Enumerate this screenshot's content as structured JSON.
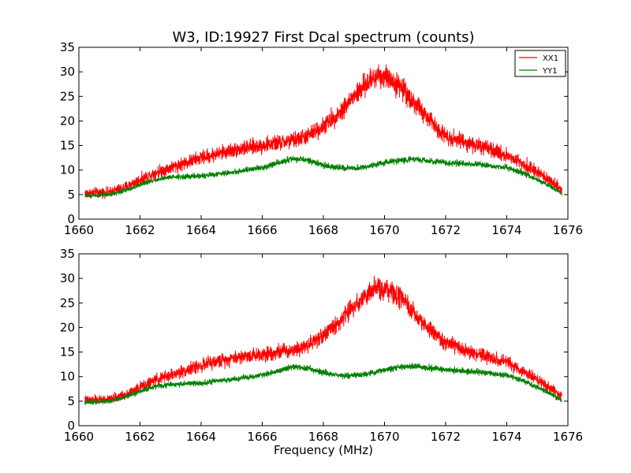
{
  "figure": {
    "title": "W3, ID:19927 First Dcal spectrum (counts)",
    "xlabel": "Frequency (MHz)"
  },
  "colors": {
    "XX1": "#ff0000",
    "YY1": "#008000",
    "axes": "#000000",
    "background": "#ffffff"
  },
  "chart_data": [
    {
      "type": "line",
      "title": "W3, ID:19927 First Dcal spectrum (counts)",
      "xlabel": "",
      "ylabel": "",
      "xlim": [
        1660,
        1676
      ],
      "ylim": [
        0,
        35
      ],
      "xticks": [
        1660,
        1662,
        1664,
        1666,
        1668,
        1670,
        1672,
        1674,
        1676
      ],
      "yticks": [
        0,
        5,
        10,
        15,
        20,
        25,
        30,
        35
      ],
      "grid": false,
      "legend": {
        "position": "top-right",
        "entries": [
          "XX1",
          "YY1"
        ]
      },
      "series": [
        {
          "name": "XX1",
          "color": "#ff0000",
          "noise": 1.8,
          "x": [
            1660.2,
            1661.0,
            1661.5,
            1662.0,
            1662.5,
            1663.0,
            1664.0,
            1665.0,
            1666.0,
            1667.0,
            1667.5,
            1668.0,
            1668.5,
            1669.0,
            1669.5,
            1669.8,
            1670.2,
            1670.6,
            1671.0,
            1671.5,
            1672.0,
            1673.0,
            1674.0,
            1674.5,
            1675.0,
            1675.5,
            1675.8
          ],
          "y": [
            5.3,
            5.5,
            6.5,
            8.0,
            9.5,
            10.5,
            12.5,
            14.0,
            15.0,
            16.0,
            17.0,
            19.0,
            21.5,
            25.0,
            28.0,
            29.5,
            28.5,
            26.5,
            23.5,
            20.0,
            17.0,
            15.0,
            13.0,
            11.5,
            9.5,
            7.5,
            6.0
          ]
        },
        {
          "name": "YY1",
          "color": "#008000",
          "noise": 0.8,
          "x": [
            1660.2,
            1661.0,
            1661.5,
            1662.0,
            1662.5,
            1663.0,
            1664.0,
            1665.0,
            1666.0,
            1666.5,
            1667.0,
            1667.5,
            1668.0,
            1668.5,
            1669.0,
            1669.5,
            1670.0,
            1670.5,
            1671.0,
            1671.5,
            1672.0,
            1673.0,
            1674.0,
            1674.5,
            1675.0,
            1675.5,
            1675.8
          ],
          "y": [
            4.8,
            5.0,
            5.8,
            7.0,
            8.0,
            8.5,
            8.8,
            9.5,
            10.5,
            11.5,
            12.3,
            12.0,
            11.0,
            10.5,
            10.3,
            10.7,
            11.5,
            12.0,
            12.2,
            11.8,
            11.5,
            11.2,
            10.5,
            9.5,
            8.0,
            6.5,
            5.2
          ]
        }
      ]
    },
    {
      "type": "line",
      "title": "",
      "xlabel": "Frequency (MHz)",
      "ylabel": "",
      "xlim": [
        1660,
        1676
      ],
      "ylim": [
        0,
        35
      ],
      "xticks": [
        1660,
        1662,
        1664,
        1666,
        1668,
        1670,
        1672,
        1674,
        1676
      ],
      "yticks": [
        0,
        5,
        10,
        15,
        20,
        25,
        30,
        35
      ],
      "grid": false,
      "legend": null,
      "series": [
        {
          "name": "",
          "color": "#ff0000",
          "noise": 1.7,
          "x": [
            1660.2,
            1661.0,
            1661.5,
            1662.0,
            1662.5,
            1663.0,
            1664.0,
            1665.0,
            1666.0,
            1667.0,
            1667.5,
            1668.0,
            1668.5,
            1669.0,
            1669.5,
            1669.8,
            1670.2,
            1670.6,
            1671.0,
            1671.5,
            1672.0,
            1673.0,
            1674.0,
            1674.5,
            1675.0,
            1675.5,
            1675.8
          ],
          "y": [
            5.2,
            5.3,
            6.3,
            7.8,
            9.3,
            10.3,
            12.3,
            13.8,
            14.6,
            15.5,
            16.5,
            18.5,
            21.0,
            24.5,
            27.0,
            28.0,
            27.3,
            25.5,
            22.5,
            19.5,
            16.8,
            14.6,
            12.8,
            11.3,
            9.3,
            7.3,
            5.8
          ]
        },
        {
          "name": "",
          "color": "#008000",
          "noise": 0.8,
          "x": [
            1660.2,
            1661.0,
            1661.5,
            1662.0,
            1662.5,
            1663.0,
            1664.0,
            1665.0,
            1666.0,
            1666.5,
            1667.0,
            1667.5,
            1668.0,
            1668.5,
            1669.0,
            1669.5,
            1670.0,
            1670.5,
            1671.0,
            1671.5,
            1672.0,
            1673.0,
            1674.0,
            1674.5,
            1675.0,
            1675.5,
            1675.8
          ],
          "y": [
            4.8,
            5.0,
            5.8,
            7.0,
            8.0,
            8.4,
            8.7,
            9.4,
            10.3,
            11.2,
            12.0,
            11.7,
            10.8,
            10.3,
            10.2,
            10.6,
            11.4,
            11.9,
            12.1,
            11.7,
            11.4,
            11.0,
            10.3,
            9.3,
            7.8,
            6.3,
            5.1
          ]
        }
      ]
    }
  ]
}
